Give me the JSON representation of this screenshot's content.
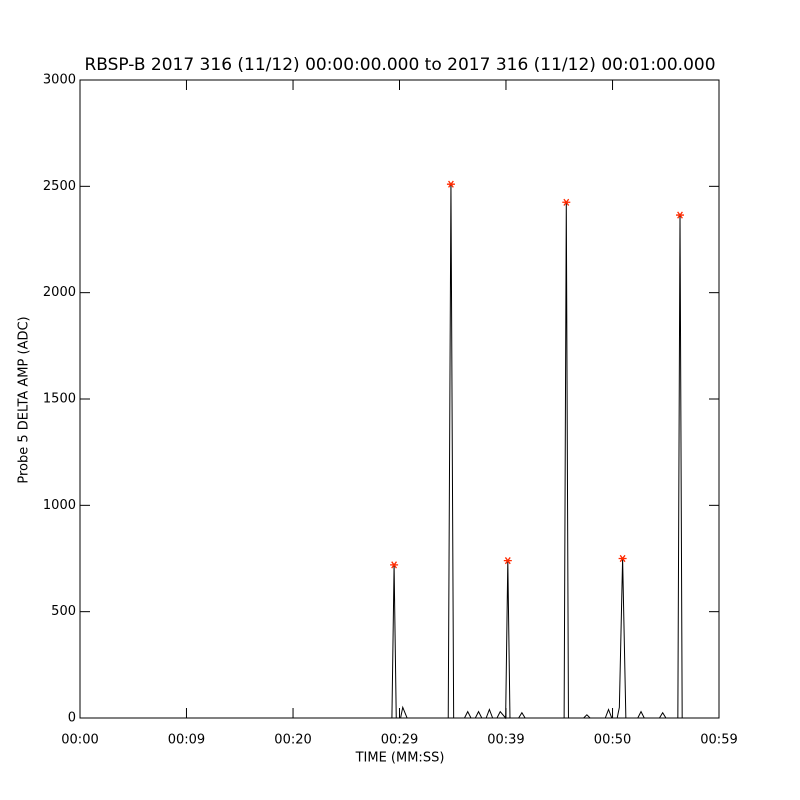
{
  "chart_data": {
    "type": "line",
    "title": "RBSP-B 2017 316 (11/12) 00:00:00.000 to 2017 316 (11/12) 00:01:00.000",
    "x_label": "TIME (MM:SS)",
    "y_label": "Probe 5 DELTA AMP (ADC)",
    "xlim": [
      0,
      59
    ],
    "xticks": [
      {
        "value": 0,
        "label": "00:00"
      },
      {
        "value": 9.83,
        "label": "00:09"
      },
      {
        "value": 19.67,
        "label": "00:20"
      },
      {
        "value": 29.5,
        "label": "00:29"
      },
      {
        "value": 39.33,
        "label": "00:39"
      },
      {
        "value": 49.17,
        "label": "00:50"
      },
      {
        "value": 59,
        "label": "00:59"
      }
    ],
    "ylim": [
      0,
      3000
    ],
    "yticks": [
      0,
      500,
      1000,
      1500,
      2000,
      2500,
      3000
    ],
    "series": [
      {
        "color": "#000000",
        "marker": "none",
        "x": [
          0,
          26,
          28.8,
          29.0,
          29.2,
          29.6,
          29.8,
          30.2,
          34.0,
          34.25,
          34.5,
          35.5,
          35.8,
          36.1,
          36.5,
          36.8,
          37.1,
          37.5,
          37.8,
          38.1,
          38.5,
          38.8,
          39.3,
          39.5,
          39.7,
          40.5,
          40.8,
          41.1,
          44.7,
          44.9,
          45.1,
          46.5,
          46.8,
          47.1,
          48.5,
          48.8,
          49.1,
          49.6,
          49.8,
          50.1,
          50.4,
          51.5,
          51.8,
          52.1,
          53.5,
          53.8,
          54.1,
          55.2,
          55.4,
          55.6,
          59
        ],
        "values": [
          0,
          0,
          0,
          720,
          0,
          0,
          50,
          0,
          0,
          2510,
          0,
          0,
          30,
          0,
          0,
          30,
          0,
          0,
          40,
          0,
          0,
          30,
          0,
          740,
          0,
          0,
          25,
          0,
          0,
          2425,
          0,
          0,
          15,
          0,
          0,
          40,
          0,
          0,
          50,
          750,
          0,
          0,
          30,
          0,
          0,
          25,
          0,
          0,
          2365,
          0,
          0
        ]
      },
      {
        "color": "#ff2a00",
        "marker": "asterisk",
        "x": [
          29.0,
          34.25,
          39.5,
          44.9,
          50.1,
          55.4
        ],
        "values": [
          720,
          2510,
          740,
          2425,
          750,
          2365
        ]
      }
    ]
  }
}
